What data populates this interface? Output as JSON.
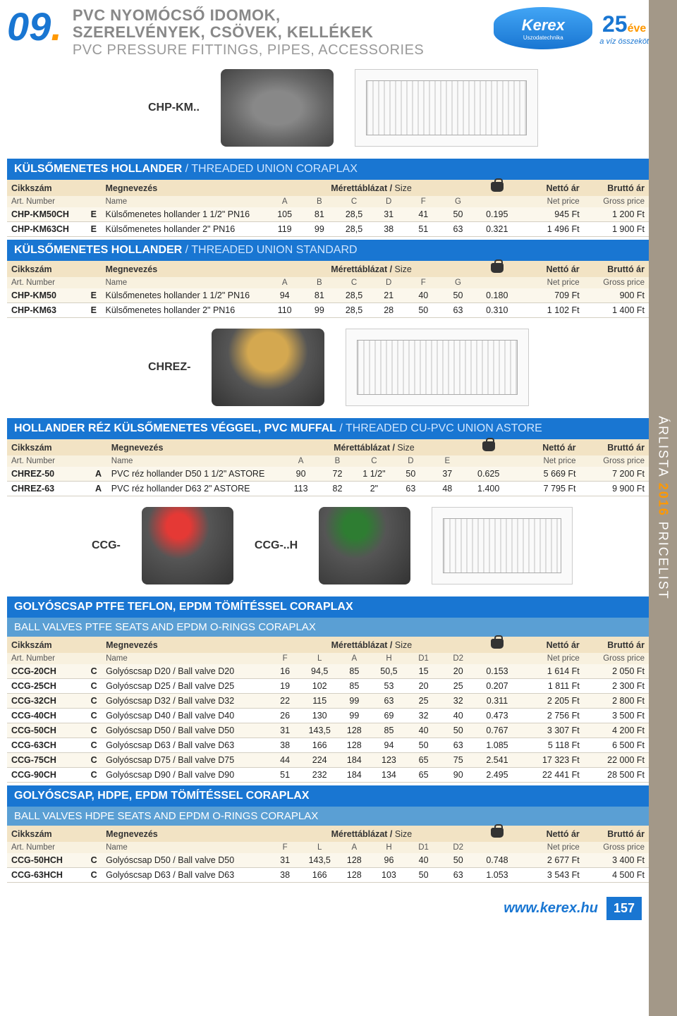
{
  "section_number": "09",
  "title_hu_l1": "PVC NYOMÓCSŐ IDOMOK,",
  "title_hu_l2": "SZERELVÉNYEK, CSÖVEK, KELLÉKEK",
  "title_en": "PVC PRESSURE FITTINGS, PIPES, ACCESSORIES",
  "logo": {
    "name": "Kerex",
    "sub": "Uszodatechnika",
    "years": "25",
    "eve": "éve",
    "tag": "a víz összeköt"
  },
  "sidebar": {
    "label": "ÁRLISTA",
    "year": "2016",
    "en": "PRICELIST"
  },
  "labels": {
    "cikkszam": "Cikkszám",
    "megnevezes": "Megnevezés",
    "merettabla": "Mérettáblázat /",
    "size": "Size",
    "netto": "Nettó ár",
    "brutto": "Bruttó ár",
    "artno": "Art. Number",
    "name": "Name",
    "netprice": "Net price",
    "grossprice": "Gross price"
  },
  "products": {
    "chpkm": "CHP-KM..",
    "chrez": "CHREZ-",
    "ccg": "CCG-",
    "ccgh": "CCG-..H"
  },
  "sec1": {
    "title": "KÜLSŐMENETES HOLLANDER",
    "title_lt": " / THREADED UNION  CORAPLAX",
    "dims": [
      "A",
      "B",
      "C",
      "D",
      "F",
      "G"
    ],
    "rows": [
      {
        "art": "CHP-KM50CH",
        "c": "E",
        "nm": "Külsőmenetes hollander 1 1/2\" PN16",
        "d": [
          "105",
          "81",
          "28,5",
          "31",
          "41",
          "50"
        ],
        "kg": "0.195",
        "np": "945 Ft",
        "gp": "1 200 Ft"
      },
      {
        "art": "CHP-KM63CH",
        "c": "E",
        "nm": "Külsőmenetes hollander 2\" PN16",
        "d": [
          "119",
          "99",
          "28,5",
          "38",
          "51",
          "63"
        ],
        "kg": "0.321",
        "np": "1 496 Ft",
        "gp": "1 900 Ft"
      }
    ]
  },
  "sec2": {
    "title": "KÜLSŐMENETES HOLLANDER",
    "title_lt": " / THREADED UNION  STANDARD",
    "dims": [
      "A",
      "B",
      "C",
      "D",
      "F",
      "G"
    ],
    "rows": [
      {
        "art": "CHP-KM50",
        "c": "E",
        "nm": "Külsőmenetes hollander 1 1/2\" PN16",
        "d": [
          "94",
          "81",
          "28,5",
          "21",
          "40",
          "50"
        ],
        "kg": "0.180",
        "np": "709 Ft",
        "gp": "900 Ft"
      },
      {
        "art": "CHP-KM63",
        "c": "E",
        "nm": "Külsőmenetes hollander 2\" PN16",
        "d": [
          "110",
          "99",
          "28,5",
          "28",
          "50",
          "63"
        ],
        "kg": "0.310",
        "np": "1 102 Ft",
        "gp": "1 400 Ft"
      }
    ]
  },
  "sec3": {
    "title": "HOLLANDER RÉZ KÜLSŐMENETES VÉGGEL, PVC MUFFAL",
    "title_lt": " / THREADED CU-PVC UNION ASTORE",
    "dims": [
      "A",
      "B",
      "C",
      "D",
      "E"
    ],
    "rows": [
      {
        "art": "CHREZ-50",
        "c": "A",
        "nm": "PVC réz hollander D50 1 1/2\" ASTORE",
        "d": [
          "90",
          "72",
          "1 1/2\"",
          "50",
          "37"
        ],
        "kg": "0.625",
        "np": "5 669 Ft",
        "gp": "7 200 Ft"
      },
      {
        "art": "CHREZ-63",
        "c": "A",
        "nm": "PVC réz hollander D63 2\" ASTORE",
        "d": [
          "113",
          "82",
          "2\"",
          "63",
          "48"
        ],
        "kg": "1.400",
        "np": "7 795 Ft",
        "gp": "9 900 Ft"
      }
    ]
  },
  "sec4": {
    "title": "GOLYÓSCSAP PTFE TEFLON, EPDM TÖMÍTÉSSEL  CORAPLAX",
    "subtitle": "BALL VALVES PTFE SEATS AND EPDM O-RINGS CORAPLAX",
    "dims": [
      "F",
      "L",
      "A",
      "H",
      "D1",
      "D2"
    ],
    "rows": [
      {
        "art": "CCG-20CH",
        "c": "C",
        "nm": "Golyóscsap D20 / Ball valve D20",
        "d": [
          "16",
          "94,5",
          "85",
          "50,5",
          "15",
          "20"
        ],
        "kg": "0.153",
        "np": "1 614 Ft",
        "gp": "2 050 Ft"
      },
      {
        "art": "CCG-25CH",
        "c": "C",
        "nm": "Golyóscsap D25 / Ball valve D25",
        "d": [
          "19",
          "102",
          "85",
          "53",
          "20",
          "25"
        ],
        "kg": "0.207",
        "np": "1 811 Ft",
        "gp": "2 300 Ft"
      },
      {
        "art": "CCG-32CH",
        "c": "C",
        "nm": "Golyóscsap D32 / Ball valve D32",
        "d": [
          "22",
          "115",
          "99",
          "63",
          "25",
          "32"
        ],
        "kg": "0.311",
        "np": "2 205 Ft",
        "gp": "2 800 Ft"
      },
      {
        "art": "CCG-40CH",
        "c": "C",
        "nm": "Golyóscsap D40 / Ball valve D40",
        "d": [
          "26",
          "130",
          "99",
          "69",
          "32",
          "40"
        ],
        "kg": "0.473",
        "np": "2 756 Ft",
        "gp": "3 500 Ft"
      },
      {
        "art": "CCG-50CH",
        "c": "C",
        "nm": "Golyóscsap D50 / Ball valve D50",
        "d": [
          "31",
          "143,5",
          "128",
          "85",
          "40",
          "50"
        ],
        "kg": "0.767",
        "np": "3 307 Ft",
        "gp": "4 200 Ft"
      },
      {
        "art": "CCG-63CH",
        "c": "C",
        "nm": "Golyóscsap D63 / Ball valve D63",
        "d": [
          "38",
          "166",
          "128",
          "94",
          "50",
          "63"
        ],
        "kg": "1.085",
        "np": "5 118 Ft",
        "gp": "6 500 Ft"
      },
      {
        "art": "CCG-75CH",
        "c": "C",
        "nm": "Golyóscsap D75 / Ball valve D75",
        "d": [
          "44",
          "224",
          "184",
          "123",
          "65",
          "75"
        ],
        "kg": "2.541",
        "np": "17 323 Ft",
        "gp": "22 000 Ft"
      },
      {
        "art": "CCG-90CH",
        "c": "C",
        "nm": "Golyóscsap D90 / Ball valve D90",
        "d": [
          "51",
          "232",
          "184",
          "134",
          "65",
          "90"
        ],
        "kg": "2.495",
        "np": "22 441 Ft",
        "gp": "28 500 Ft"
      }
    ]
  },
  "sec5": {
    "title": "GOLYÓSCSAP, HDPE, EPDM TÖMÍTÉSSEL CORAPLAX",
    "subtitle": "BALL VALVES HDPE SEATS AND EPDM O-RINGS CORAPLAX",
    "dims": [
      "F",
      "L",
      "A",
      "H",
      "D1",
      "D2"
    ],
    "rows": [
      {
        "art": "CCG-50HCH",
        "c": "C",
        "nm": "Golyóscsap D50 / Ball valve D50",
        "d": [
          "31",
          "143,5",
          "128",
          "96",
          "40",
          "50"
        ],
        "kg": "0.748",
        "np": "2 677 Ft",
        "gp": "3 400 Ft"
      },
      {
        "art": "CCG-63HCH",
        "c": "C",
        "nm": "Golyóscsap D63 / Ball valve D63",
        "d": [
          "38",
          "166",
          "128",
          "103",
          "50",
          "63"
        ],
        "kg": "1.053",
        "np": "3 543 Ft",
        "gp": "4 500 Ft"
      }
    ]
  },
  "footer": {
    "url": "www.kerex.hu",
    "page": "157"
  }
}
